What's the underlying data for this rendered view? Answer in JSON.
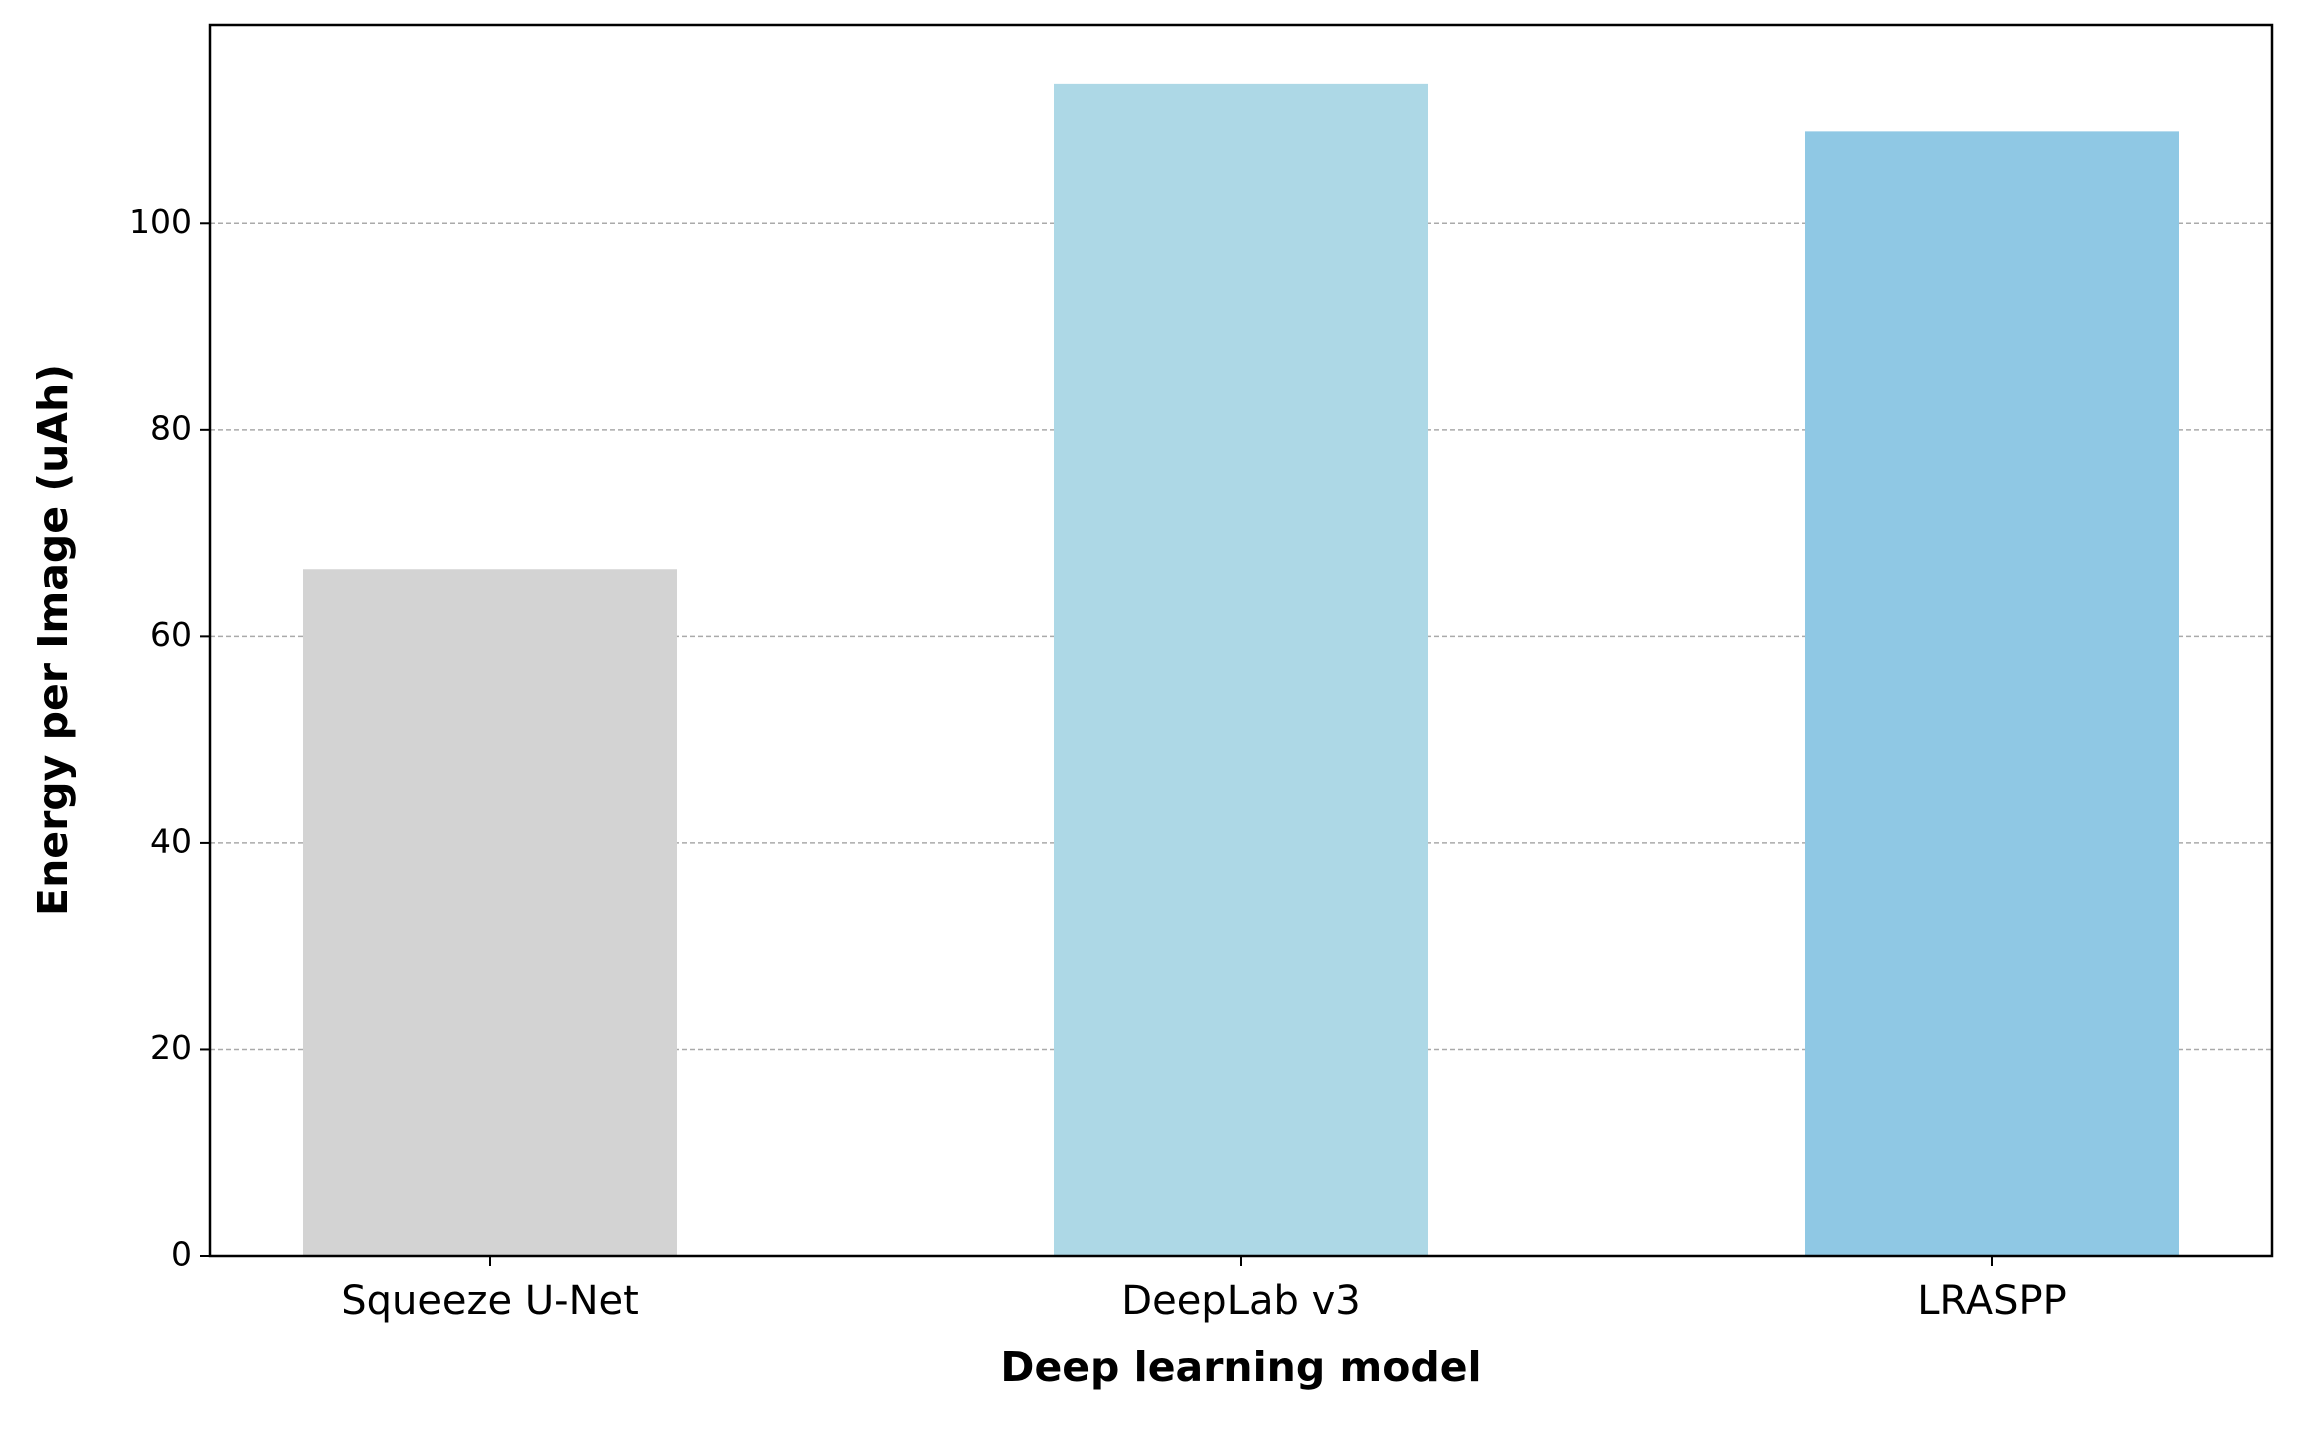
{
  "chart_data": {
    "type": "bar",
    "x_label": "Deep learning model",
    "y_label": "Energy per Image (uAh)",
    "categories": [
      "Squeeze U-Net",
      "DeepLab v3",
      "LRASPP"
    ],
    "values": [
      66.5,
      113.5,
      108.9
    ],
    "colors": [
      "#d3d3d3",
      "#add8e6",
      "#8fc8e4"
    ],
    "ylim": [
      0,
      119.2
    ],
    "yticks": [
      0,
      20,
      40,
      60,
      80,
      100
    ],
    "grid": true
  }
}
